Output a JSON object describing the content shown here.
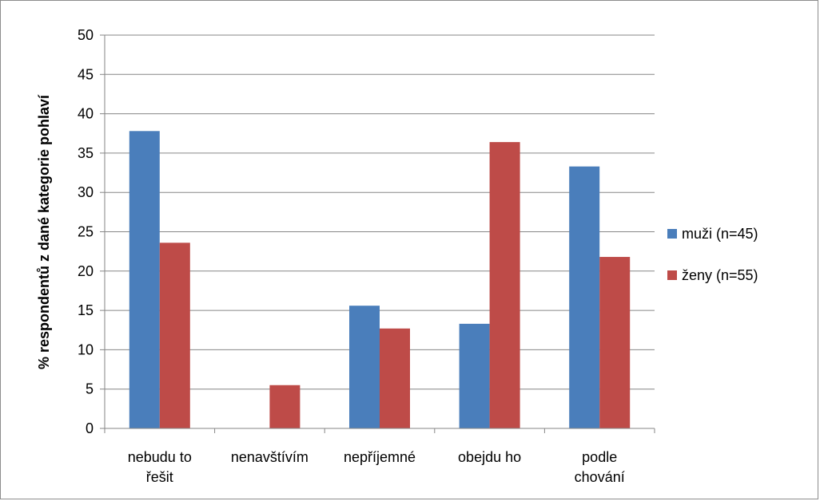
{
  "chart_data": {
    "type": "bar",
    "title": "",
    "xlabel": "",
    "ylabel": "% respondentů z dané kategorie pohlaví",
    "ylim": [
      0,
      50
    ],
    "yticks": [
      0,
      5,
      10,
      15,
      20,
      25,
      30,
      35,
      40,
      45,
      50
    ],
    "grid": true,
    "legend_position": "right",
    "categories": [
      [
        "nebudu to",
        "řešit"
      ],
      [
        "nenavštívím"
      ],
      [
        "nepříjemné"
      ],
      [
        "obejdu ho"
      ],
      [
        "podle",
        "chování"
      ]
    ],
    "series": [
      {
        "name": "muži (n=45)",
        "color": "#4a7ebb",
        "values": [
          37.8,
          0,
          15.6,
          13.3,
          33.3
        ]
      },
      {
        "name": "ženy (n=55)",
        "color": "#be4b48",
        "values": [
          23.6,
          5.5,
          12.7,
          36.4,
          21.8
        ]
      }
    ]
  }
}
